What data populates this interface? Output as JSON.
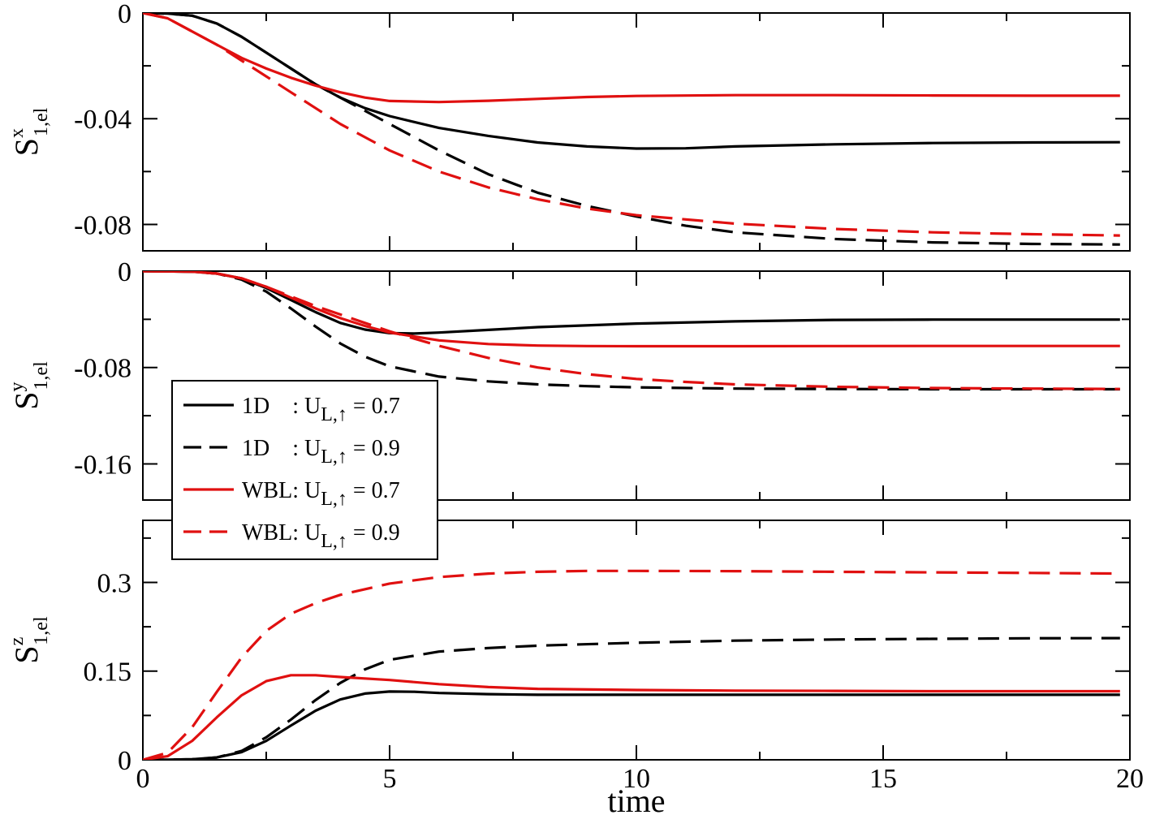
{
  "chart_data": [
    {
      "type": "line",
      "panel": "top",
      "ylabel": {
        "main": "S",
        "sup": "x",
        "sub": "1,el"
      },
      "xlim": [
        0,
        20
      ],
      "ylim": [
        -0.09,
        0
      ],
      "yticks": [
        0,
        -0.04,
        -0.08
      ],
      "ytick_labels": [
        "0",
        "-0.04",
        "-0.08"
      ],
      "series": [
        {
          "name": "1D : U_L,↑ = 0.7",
          "color": "#000000",
          "dash": "solid",
          "x": [
            0,
            0.5,
            1,
            1.5,
            2,
            2.5,
            3,
            3.5,
            4,
            4.5,
            5,
            6,
            7,
            8,
            9,
            10,
            11,
            12,
            14,
            16,
            18,
            19.8
          ],
          "y": [
            0,
            -0.0002,
            -0.001,
            -0.004,
            -0.009,
            -0.015,
            -0.021,
            -0.027,
            -0.032,
            -0.036,
            -0.039,
            -0.0435,
            -0.0465,
            -0.049,
            -0.0505,
            -0.0513,
            -0.0512,
            -0.0505,
            -0.0497,
            -0.0492,
            -0.049,
            -0.0489
          ]
        },
        {
          "name": "1D : U_L,↑ = 0.9",
          "color": "#000000",
          "dash": "dashed",
          "x": [
            0,
            0.5,
            1,
            1.5,
            2,
            2.5,
            3,
            3.5,
            4,
            4.5,
            5,
            6,
            7,
            8,
            9,
            10,
            11,
            12,
            14,
            16,
            18,
            19.8
          ],
          "y": [
            0,
            -0.0002,
            -0.001,
            -0.004,
            -0.009,
            -0.015,
            -0.021,
            -0.027,
            -0.032,
            -0.037,
            -0.042,
            -0.052,
            -0.061,
            -0.068,
            -0.073,
            -0.077,
            -0.0805,
            -0.083,
            -0.0855,
            -0.0868,
            -0.0874,
            -0.0876
          ]
        },
        {
          "name": "WBL: U_L,↑ = 0.7",
          "color": "#e01010",
          "dash": "solid",
          "x": [
            0,
            0.5,
            1,
            1.5,
            2,
            2.5,
            3,
            3.5,
            4,
            4.5,
            5,
            6,
            7,
            8,
            9,
            10,
            12,
            14,
            16,
            18,
            19.8
          ],
          "y": [
            0,
            -0.002,
            -0.007,
            -0.012,
            -0.017,
            -0.021,
            -0.0245,
            -0.0275,
            -0.03,
            -0.032,
            -0.0333,
            -0.0337,
            -0.0332,
            -0.0325,
            -0.0318,
            -0.0314,
            -0.0311,
            -0.0311,
            -0.0312,
            -0.0313,
            -0.0313
          ]
        },
        {
          "name": "WBL: U_L,↑ = 0.9",
          "color": "#e01010",
          "dash": "dashed",
          "x": [
            0,
            0.5,
            1,
            1.5,
            2,
            2.5,
            3,
            3.5,
            4,
            4.5,
            5,
            6,
            7,
            8,
            9,
            10,
            12,
            14,
            16,
            18,
            19.8
          ],
          "y": [
            0,
            -0.002,
            -0.007,
            -0.012,
            -0.018,
            -0.024,
            -0.03,
            -0.036,
            -0.042,
            -0.047,
            -0.052,
            -0.06,
            -0.066,
            -0.0705,
            -0.074,
            -0.0765,
            -0.0797,
            -0.0817,
            -0.083,
            -0.0837,
            -0.0842
          ]
        }
      ]
    },
    {
      "type": "line",
      "panel": "middle",
      "ylabel": {
        "main": "S",
        "sup": "y",
        "sub": "1,el"
      },
      "xlim": [
        0,
        20
      ],
      "ylim": [
        -0.19,
        0
      ],
      "yticks": [
        0,
        -0.08,
        -0.16
      ],
      "ytick_labels": [
        "0",
        "-0.08",
        "-0.16"
      ],
      "series": [
        {
          "name": "1D : U_L,↑ = 0.7",
          "color": "#000000",
          "dash": "solid",
          "x": [
            0,
            1,
            1.5,
            2,
            2.5,
            3,
            3.5,
            4,
            4.5,
            5,
            5.5,
            6,
            7,
            8,
            10,
            12,
            14,
            16,
            18,
            19.8
          ],
          "y": [
            0,
            -0.0005,
            -0.002,
            -0.006,
            -0.014,
            -0.024,
            -0.034,
            -0.043,
            -0.0485,
            -0.0515,
            -0.0518,
            -0.051,
            -0.0488,
            -0.0465,
            -0.0435,
            -0.0417,
            -0.0405,
            -0.0402,
            -0.0402,
            -0.0402
          ]
        },
        {
          "name": "1D : U_L,↑ = 0.9",
          "color": "#000000",
          "dash": "dashed",
          "x": [
            0,
            1,
            1.5,
            2,
            2.5,
            3,
            3.5,
            4,
            4.5,
            5,
            6,
            7,
            8,
            9,
            10,
            12,
            14,
            16,
            18,
            19.8
          ],
          "y": [
            0,
            -0.0005,
            -0.002,
            -0.007,
            -0.017,
            -0.031,
            -0.046,
            -0.06,
            -0.071,
            -0.079,
            -0.0875,
            -0.0915,
            -0.094,
            -0.0955,
            -0.0965,
            -0.0975,
            -0.0978,
            -0.098,
            -0.098,
            -0.098
          ]
        },
        {
          "name": "WBL: U_L,↑ = 0.7",
          "color": "#e01010",
          "dash": "solid",
          "x": [
            0,
            1,
            1.5,
            2,
            2.5,
            3,
            3.5,
            4,
            4.5,
            5,
            6,
            7,
            8,
            9,
            10,
            12,
            14,
            16,
            18,
            19.8
          ],
          "y": [
            0,
            -0.0005,
            -0.002,
            -0.006,
            -0.013,
            -0.022,
            -0.031,
            -0.039,
            -0.0455,
            -0.051,
            -0.0575,
            -0.0605,
            -0.0618,
            -0.0622,
            -0.0623,
            -0.0623,
            -0.0622,
            -0.0621,
            -0.0621,
            -0.0621
          ]
        },
        {
          "name": "WBL: U_L,↑ = 0.9",
          "color": "#e01010",
          "dash": "dashed",
          "x": [
            0,
            1,
            1.5,
            2,
            2.5,
            3,
            3.5,
            4,
            4.5,
            5,
            6,
            7,
            8,
            9,
            10,
            11,
            12,
            14,
            16,
            18,
            19.8
          ],
          "y": [
            0,
            -0.0005,
            -0.002,
            -0.006,
            -0.013,
            -0.021,
            -0.029,
            -0.036,
            -0.043,
            -0.05,
            -0.062,
            -0.072,
            -0.08,
            -0.0855,
            -0.0895,
            -0.092,
            -0.094,
            -0.096,
            -0.097,
            -0.0975,
            -0.0978
          ]
        }
      ]
    },
    {
      "type": "line",
      "panel": "bottom",
      "ylabel": {
        "main": "S",
        "sup": "z",
        "sub": "1,el"
      },
      "xlabel": "time",
      "xlim": [
        0,
        20
      ],
      "ylim": [
        0,
        0.405
      ],
      "yticks": [
        0,
        0.15,
        0.3
      ],
      "ytick_labels": [
        "0",
        "0.15",
        "0.3"
      ],
      "xticks": [
        0,
        5,
        10,
        15,
        20
      ],
      "xtick_labels": [
        "0",
        "5",
        "10",
        "15",
        "20"
      ],
      "series": [
        {
          "name": "1D : U_L,↑ = 0.7",
          "color": "#000000",
          "dash": "solid",
          "x": [
            0,
            0.5,
            1,
            1.5,
            2,
            2.5,
            3,
            3.5,
            4,
            4.5,
            5,
            5.5,
            6,
            7,
            8,
            10,
            12,
            14,
            16,
            18,
            19.8
          ],
          "y": [
            0,
            0.0002,
            0.001,
            0.004,
            0.013,
            0.032,
            0.058,
            0.083,
            0.102,
            0.112,
            0.1155,
            0.115,
            0.113,
            0.111,
            0.11,
            0.11,
            0.11,
            0.11,
            0.11,
            0.11,
            0.11
          ]
        },
        {
          "name": "1D : U_L,↑ = 0.9",
          "color": "#000000",
          "dash": "dashed",
          "x": [
            0,
            0.5,
            1,
            1.5,
            2,
            2.5,
            3,
            3.5,
            4,
            4.5,
            5,
            6,
            7,
            8,
            10,
            12,
            14,
            16,
            18,
            19.8
          ],
          "y": [
            0,
            0.0002,
            0.001,
            0.004,
            0.015,
            0.038,
            0.068,
            0.101,
            0.13,
            0.153,
            0.169,
            0.183,
            0.189,
            0.193,
            0.198,
            0.2015,
            0.2035,
            0.2045,
            0.2055,
            0.2058
          ]
        },
        {
          "name": "WBL: U_L,↑ = 0.7",
          "color": "#e01010",
          "dash": "solid",
          "x": [
            0,
            0.5,
            1,
            1.5,
            2,
            2.5,
            3,
            3.5,
            4,
            5,
            6,
            7,
            8,
            10,
            12,
            14,
            16,
            18,
            19.8
          ],
          "y": [
            0,
            0.006,
            0.032,
            0.072,
            0.109,
            0.133,
            0.143,
            0.143,
            0.14,
            0.135,
            0.128,
            0.123,
            0.12,
            0.118,
            0.117,
            0.1165,
            0.116,
            0.116,
            0.116
          ]
        },
        {
          "name": "WBL: U_L,↑ = 0.9",
          "color": "#e01010",
          "dash": "dashed",
          "x": [
            0,
            0.5,
            1,
            1.5,
            2,
            2.5,
            3,
            3.5,
            4,
            5,
            6,
            7,
            8,
            9,
            10,
            12,
            14,
            16,
            18,
            19.8
          ],
          "y": [
            0,
            0.012,
            0.055,
            0.115,
            0.173,
            0.218,
            0.247,
            0.265,
            0.279,
            0.298,
            0.309,
            0.315,
            0.318,
            0.3195,
            0.3195,
            0.319,
            0.318,
            0.317,
            0.316,
            0.315
          ]
        }
      ]
    }
  ],
  "legend": {
    "placement": "middle-left",
    "entries": [
      {
        "name_text": "1D",
        "label_prefix": "1D    : U",
        "sub": "L,↑",
        "value_text": " = 0.7",
        "color": "#000000",
        "dash": "solid"
      },
      {
        "name_text": "1D",
        "label_prefix": "1D    : U",
        "sub": "L,↑",
        "value_text": " = 0.9",
        "color": "#000000",
        "dash": "dashed"
      },
      {
        "name_text": "WBL",
        "label_prefix": "WBL: U",
        "sub": "L,↑",
        "value_text": " = 0.7",
        "color": "#e01010",
        "dash": "solid"
      },
      {
        "name_text": "WBL",
        "label_prefix": "WBL: U",
        "sub": "L,↑",
        "value_text": " = 0.9",
        "color": "#e01010",
        "dash": "dashed"
      }
    ]
  },
  "colors": {
    "black": "#000000",
    "red": "#e01010",
    "frame": "#000000"
  }
}
